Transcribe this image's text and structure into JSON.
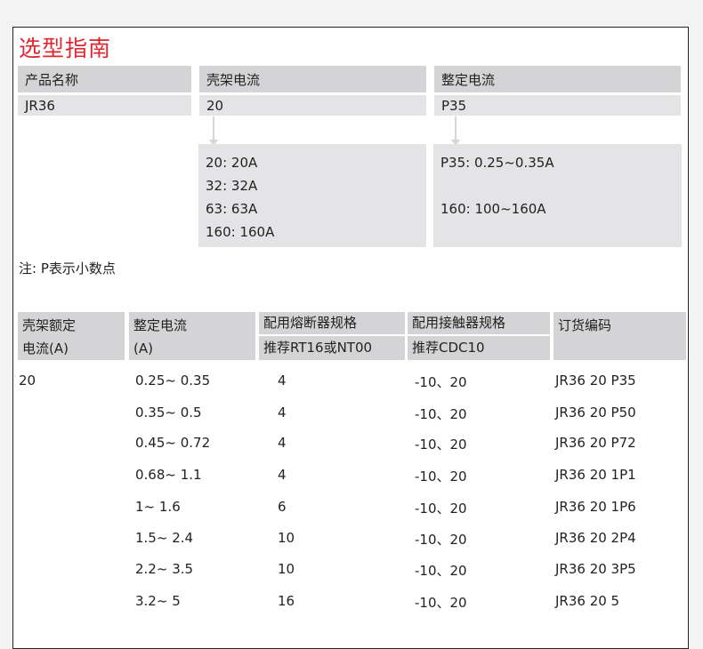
{
  "title": "选型指南",
  "selector": {
    "headers": [
      "产品名称",
      "壳架电流",
      "整定电流"
    ],
    "values": [
      "JR36",
      "20",
      "P35"
    ],
    "frame_options": [
      "20: 20A",
      "32: 32A",
      "63: 63A",
      "160: 160A"
    ],
    "setting_options": [
      "P35: 0.25~0.35A",
      "160: 100~160A"
    ]
  },
  "note": "注: P表示小数点",
  "table": {
    "headers": {
      "c1a": "壳架额定",
      "c1b": "电流(A)",
      "c2a": "整定电流",
      "c2b": "(A)",
      "c3a": "配用熔断器规格",
      "c3b": "推荐RT16或NT00",
      "c4a": "配用接触器规格",
      "c4b": "推荐CDC10",
      "c5": "订货编码"
    },
    "frame": "20",
    "rows": [
      [
        "0.25~ 0.35",
        "4",
        "-10、20",
        "JR36  20 P35"
      ],
      [
        "0.35~ 0.5",
        "4",
        "-10、20",
        "JR36  20 P50"
      ],
      [
        "0.45~ 0.72",
        "4",
        "-10、20",
        "JR36  20 P72"
      ],
      [
        "0.68~ 1.1",
        "4",
        "-10、20",
        "JR36  20 1P1"
      ],
      [
        "1~ 1.6",
        "6",
        "-10、20",
        "JR36  20 1P6"
      ],
      [
        "1.5~ 2.4",
        "10",
        "-10、20",
        "JR36  20 2P4"
      ],
      [
        "2.2~ 3.5",
        "10",
        "-10、20",
        "JR36  20 3P5"
      ],
      [
        "3.2~ 5",
        "16",
        "-10、20",
        "JR36  20 5"
      ]
    ]
  }
}
